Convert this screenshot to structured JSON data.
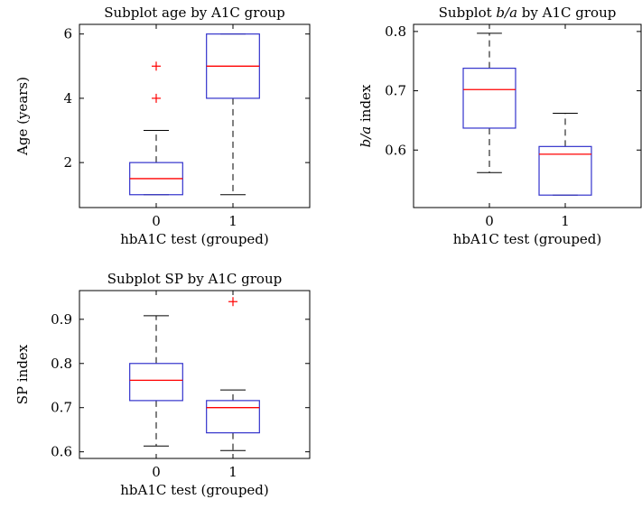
{
  "chart_data": [
    {
      "type": "box",
      "title": "Subplot age by A1C group",
      "xlabel": "hbA1C test (grouped)",
      "ylabel": "Age (years)",
      "ylim": [
        0.6,
        6.3
      ],
      "yticks": [
        "2",
        "4",
        "6"
      ],
      "ytick_values": [
        2,
        4,
        6
      ],
      "categories": [
        "0",
        "1"
      ],
      "box_color": "#3333cc",
      "median_color": "#ff0000",
      "outlier_color": "#ff0000",
      "boxes": [
        {
          "category": "0",
          "whisker_low": 1,
          "q1": 1,
          "median": 1.5,
          "q3": 2,
          "whisker_high": 3,
          "outliers": [
            4,
            5
          ]
        },
        {
          "category": "1",
          "whisker_low": 1,
          "q1": 4,
          "median": 5,
          "q3": 6,
          "whisker_high": 6,
          "outliers": []
        }
      ]
    },
    {
      "type": "box",
      "title_parts": [
        "Subplot ",
        "b/a",
        " by A1C group"
      ],
      "xlabel": "hbA1C test (grouped)",
      "ylabel_parts": [
        "b/a",
        " index"
      ],
      "ylim": [
        0.503,
        0.812
      ],
      "yticks": [
        "0.6",
        "0.7",
        "0.8"
      ],
      "ytick_values": [
        0.6,
        0.7,
        0.8
      ],
      "categories": [
        "0",
        "1"
      ],
      "box_color": "#3333cc",
      "median_color": "#ff0000",
      "outlier_color": "#ff0000",
      "boxes": [
        {
          "category": "0",
          "whisker_low": 0.562,
          "q1": 0.637,
          "median": 0.702,
          "q3": 0.738,
          "whisker_high": 0.797,
          "outliers": []
        },
        {
          "category": "1",
          "whisker_low": 0.524,
          "q1": 0.524,
          "median": 0.593,
          "q3": 0.606,
          "whisker_high": 0.662,
          "outliers": []
        }
      ]
    },
    {
      "type": "box",
      "title": "Subplot SP by A1C group",
      "xlabel": "hbA1C test (grouped)",
      "ylabel": "SP index",
      "ylim": [
        0.585,
        0.965
      ],
      "yticks": [
        "0.6",
        "0.7",
        "0.8",
        "0.9"
      ],
      "ytick_values": [
        0.6,
        0.7,
        0.8,
        0.9
      ],
      "categories": [
        "0",
        "1"
      ],
      "box_color": "#3333cc",
      "median_color": "#ff0000",
      "outlier_color": "#ff0000",
      "boxes": [
        {
          "category": "0",
          "whisker_low": 0.613,
          "q1": 0.716,
          "median": 0.762,
          "q3": 0.8,
          "whisker_high": 0.908,
          "outliers": []
        },
        {
          "category": "1",
          "whisker_low": 0.603,
          "q1": 0.643,
          "median": 0.7,
          "q3": 0.716,
          "whisker_high": 0.74,
          "outliers": [
            0.94
          ]
        }
      ]
    }
  ]
}
